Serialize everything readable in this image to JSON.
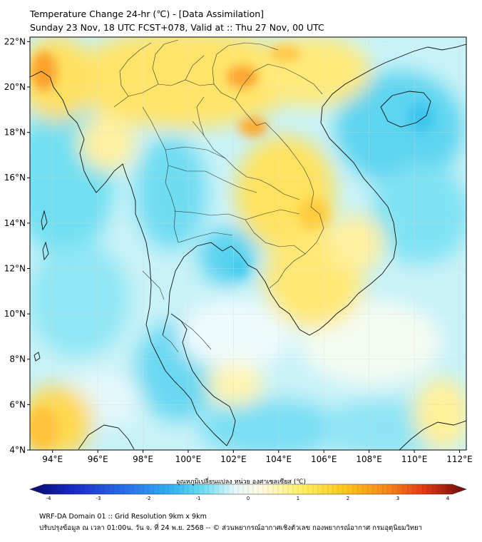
{
  "header": {
    "title_line1": "Temperature Change 24-hr (℃) - [Data Assimilation]",
    "title_line2": "Sunday 23 Nov, 18 UTC FCST+078, Valid at :: Thu 27 Nov, 00 UTC"
  },
  "map": {
    "lat_ticks": [
      "22°N",
      "20°N",
      "18°N",
      "16°N",
      "14°N",
      "12°N",
      "10°N",
      "8°N",
      "6°N",
      "4°N"
    ],
    "lon_ticks": [
      "94°E",
      "96°E",
      "98°E",
      "100°E",
      "102°E",
      "104°E",
      "106°E",
      "108°E",
      "110°E",
      "112°E"
    ],
    "extent": {
      "lon_min": 93,
      "lon_max": 112.3,
      "lat_min": 4,
      "lat_max": 22.2
    }
  },
  "colorbar": {
    "label": "อุณหภูมิเปลี่ยนแปลง หน่วย องศาเซลเซียส (℃)",
    "ticks": [
      "-4",
      "-3",
      "-2",
      "-1",
      "0",
      "1",
      "2",
      "3",
      "4"
    ],
    "range": [
      -4,
      4
    ],
    "colors": [
      "#0a0a7a",
      "#1a28c8",
      "#2a66e8",
      "#2fa6f0",
      "#3fd4f2",
      "#a0eef6",
      "#ffffff",
      "#fff6a8",
      "#ffe14a",
      "#ffbe1a",
      "#fb8c1a",
      "#f04a14",
      "#c81414",
      "#780a0a"
    ]
  },
  "footer": {
    "line1": "WRF-DA Domain 01 :: Grid Resolution 9km x 9km",
    "line2": "ปรับปรุงข้อมูล ณ เวลา 01:00น. วัน จ. ที่ 24 พ.ย. 2568 -- © ส่วนพยากรณ์อากาศเชิงตัวเลข กองพยากรณ์อากาศ กรมอุตุนิยมวิทยา"
  }
}
